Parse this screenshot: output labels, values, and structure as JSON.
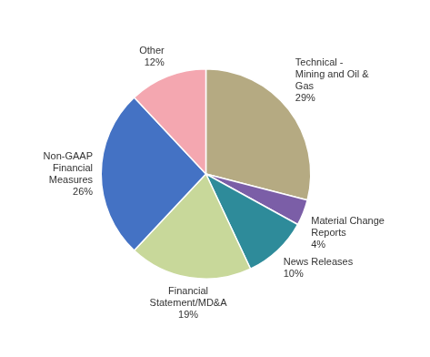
{
  "chart_data": {
    "type": "pie",
    "categories": [
      "Technical -\nMining and Oil &\nGas\n29%",
      "Material Change\nReports\n4%",
      "News Releases\n10%",
      "Financial\nStatement/MD&A\n19%",
      "Non-GAAP\nFinancial\nMeasures\n26%",
      "Other\n12%"
    ],
    "values": [
      29,
      4,
      10,
      19,
      26,
      12
    ],
    "colors": [
      "#b5aa82",
      "#7b5ea7",
      "#2e8b9a",
      "#c8d89a",
      "#4472c4",
      "#f4a7b0"
    ]
  }
}
